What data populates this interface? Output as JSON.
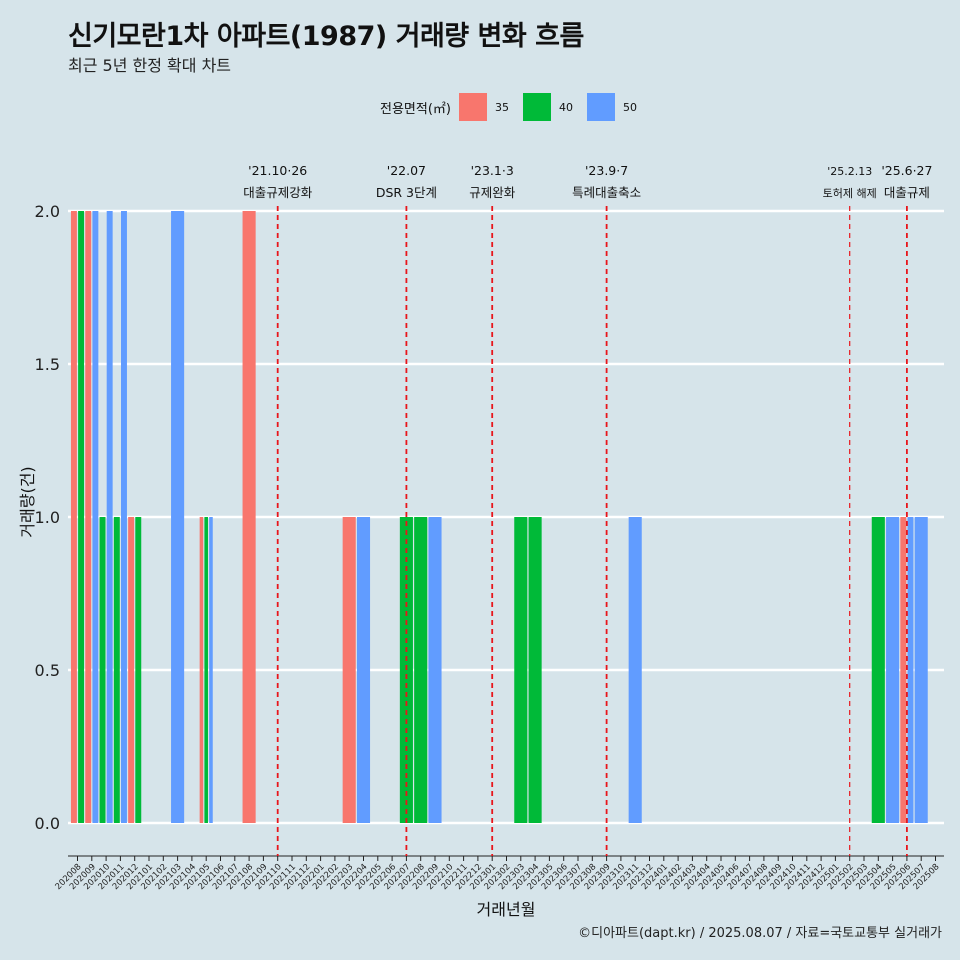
{
  "header": {
    "title": "신기모란1차 아파트(1987) 거래량 변화 흐름",
    "subtitle": "최근 5년 한정 확대 차트"
  },
  "legend": {
    "title": "전용면적(㎡)",
    "items": [
      {
        "label": "35",
        "color": "#f8766d"
      },
      {
        "label": "40",
        "color": "#00ba38"
      },
      {
        "label": "50",
        "color": "#619cff"
      }
    ]
  },
  "footer": {
    "credit": "©디아파트(dapt.kr) / 2025.08.07 / 자료=국토교통부 실거래가"
  },
  "chart_data": {
    "type": "bar",
    "xlabel": "거래년월",
    "ylabel": "거래량(건)",
    "ylim": [
      0,
      2
    ],
    "yticks": [
      "0.0",
      "0.5",
      "1.0",
      "1.5",
      "2.0"
    ],
    "grid": "horizontal",
    "legend_position": "top",
    "categories": [
      "202008",
      "202009",
      "202010",
      "202011",
      "202012",
      "202101",
      "202102",
      "202103",
      "202104",
      "202105",
      "202106",
      "202107",
      "202108",
      "202109",
      "202110",
      "202111",
      "202112",
      "202201",
      "202202",
      "202203",
      "202204",
      "202205",
      "202206",
      "202207",
      "202208",
      "202209",
      "202210",
      "202211",
      "202212",
      "202301",
      "202302",
      "202303",
      "202304",
      "202305",
      "202306",
      "202307",
      "202308",
      "202309",
      "202310",
      "202311",
      "202312",
      "202401",
      "202402",
      "202403",
      "202404",
      "202405",
      "202406",
      "202407",
      "202408",
      "202409",
      "202410",
      "202411",
      "202412",
      "202501",
      "202502",
      "202503",
      "202504",
      "202505",
      "202506",
      "202507",
      "202508"
    ],
    "series": [
      {
        "name": "35",
        "color": "#f8766d",
        "values": [
          2,
          2,
          0,
          0,
          1,
          0,
          0,
          0,
          0,
          1,
          0,
          0,
          2,
          0,
          0,
          0,
          0,
          0,
          0,
          1,
          0,
          0,
          0,
          0,
          0,
          0,
          0,
          0,
          0,
          0,
          0,
          0,
          0,
          0,
          0,
          0,
          0,
          0,
          0,
          0,
          0,
          0,
          0,
          0,
          0,
          0,
          0,
          0,
          0,
          0,
          0,
          0,
          0,
          0,
          0,
          0,
          0,
          0,
          1,
          0,
          0
        ]
      },
      {
        "name": "40",
        "color": "#00ba38",
        "values": [
          2,
          0,
          1,
          1,
          1,
          0,
          0,
          0,
          0,
          1,
          0,
          0,
          0,
          0,
          0,
          0,
          0,
          0,
          0,
          0,
          0,
          0,
          0,
          1,
          1,
          0,
          0,
          0,
          0,
          0,
          0,
          1,
          1,
          0,
          0,
          0,
          0,
          0,
          0,
          0,
          0,
          0,
          0,
          0,
          0,
          0,
          0,
          0,
          0,
          0,
          0,
          0,
          0,
          0,
          0,
          0,
          1,
          0,
          0,
          0,
          0
        ]
      },
      {
        "name": "50",
        "color": "#619cff",
        "values": [
          0,
          2,
          2,
          2,
          0,
          0,
          0,
          2,
          0,
          1,
          0,
          0,
          0,
          0,
          0,
          0,
          0,
          0,
          0,
          0,
          1,
          0,
          0,
          0,
          0,
          1,
          0,
          0,
          0,
          0,
          0,
          0,
          0,
          0,
          0,
          0,
          0,
          0,
          0,
          1,
          0,
          0,
          0,
          0,
          0,
          0,
          0,
          0,
          0,
          0,
          0,
          0,
          0,
          0,
          0,
          0,
          0,
          1,
          1,
          1,
          0
        ]
      }
    ],
    "annotations": [
      {
        "month": "202110",
        "lines": [
          "'21.10·26",
          "대출규제강화"
        ]
      },
      {
        "month": "202207",
        "lines": [
          "'22.07",
          "DSR 3단계"
        ]
      },
      {
        "month": "202301",
        "lines": [
          "'23.1·3",
          "규제완화"
        ]
      },
      {
        "month": "202309",
        "lines": [
          "'23.9·7",
          "특례대출축소"
        ]
      },
      {
        "month": "202502",
        "lines": [
          "'25.2.13",
          "토허제 해제"
        ],
        "small": true
      },
      {
        "month": "202506",
        "lines": [
          "'25.6·27",
          "대출규제"
        ]
      }
    ]
  }
}
